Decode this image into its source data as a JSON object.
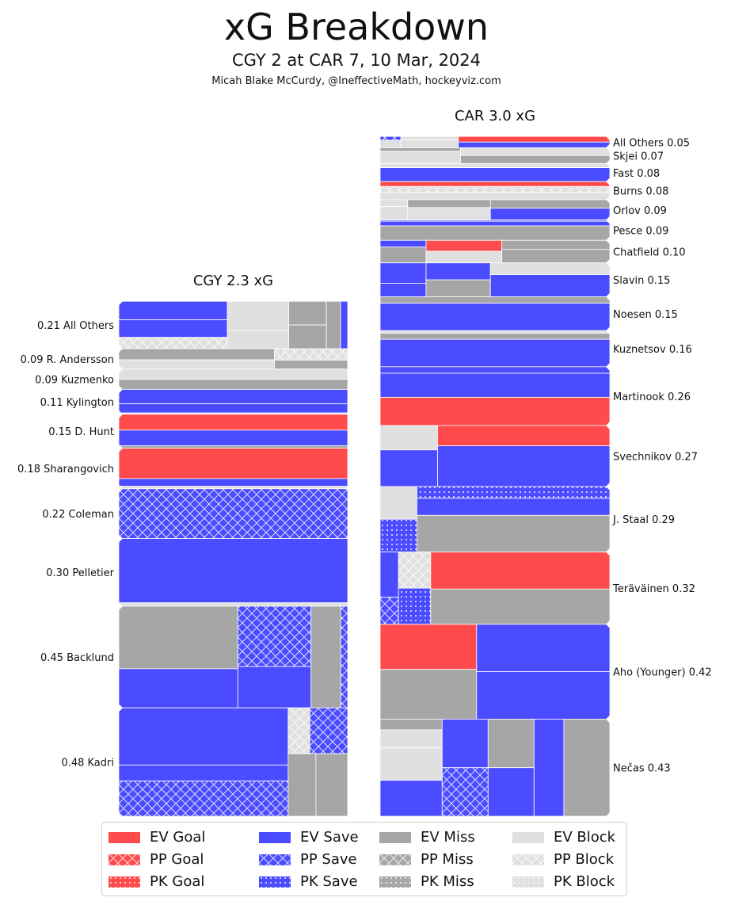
{
  "title": "xG Breakdown",
  "subtitle": "CGY 2 at CAR 7, 10 Mar, 2024",
  "byline": "Micah Blake McCurdy, @IneffectiveMath, hockeyviz.com",
  "colors": {
    "goal": "#ff4b4b",
    "save": "#4b4bff",
    "miss": "#a6a6a6",
    "block": "#e0e0e0",
    "edge": "#ffffff"
  },
  "legend": [
    {
      "label": "EV Goal",
      "kind": "goal",
      "pattern": "ev"
    },
    {
      "label": "PP Goal",
      "kind": "goal",
      "pattern": "pp"
    },
    {
      "label": "PK Goal",
      "kind": "goal",
      "pattern": "pk"
    },
    {
      "label": "EV Save",
      "kind": "save",
      "pattern": "ev"
    },
    {
      "label": "PP Save",
      "kind": "save",
      "pattern": "pp"
    },
    {
      "label": "PK Save",
      "kind": "save",
      "pattern": "pk"
    },
    {
      "label": "EV Miss",
      "kind": "miss",
      "pattern": "ev"
    },
    {
      "label": "PP Miss",
      "kind": "miss",
      "pattern": "pp"
    },
    {
      "label": "PK Miss",
      "kind": "miss",
      "pattern": "pk"
    },
    {
      "label": "EV Block",
      "kind": "block",
      "pattern": "ev"
    },
    {
      "label": "PP Block",
      "kind": "block",
      "pattern": "pp"
    },
    {
      "label": "PK Block",
      "kind": "block",
      "pattern": "pk"
    }
  ],
  "chart_data": {
    "type": "treemap",
    "unit": "xG",
    "panels": [
      {
        "team": "CGY",
        "title": "CGY 2.3 xG",
        "total_xg": 2.3,
        "label_side": "left",
        "players": [
          {
            "name": "All Others",
            "label": "0.21 All Others",
            "xg": 0.21,
            "shots": [
              {
                "kind": "save",
                "pattern": "ev",
                "w": 0.18
              },
              {
                "kind": "save",
                "pattern": "ev",
                "w": 0.17
              },
              {
                "kind": "block",
                "pattern": "pp",
                "w": 0.11
              },
              {
                "kind": "block",
                "pattern": "ev",
                "w": 0.16
              },
              {
                "kind": "block",
                "pattern": "ev",
                "w": 0.1
              },
              {
                "kind": "miss",
                "pattern": "ev",
                "w": 0.08
              },
              {
                "kind": "miss",
                "pattern": "ev",
                "w": 0.08
              },
              {
                "kind": "miss",
                "pattern": "ev",
                "w": 0.06
              },
              {
                "kind": "save",
                "pattern": "ev",
                "w": 0.03
              }
            ]
          },
          {
            "name": "R. Andersson",
            "label": "0.09 R. Andersson",
            "xg": 0.09,
            "shots": [
              {
                "kind": "miss",
                "pattern": "ev",
                "w": 0.37
              },
              {
                "kind": "block",
                "pattern": "ev",
                "w": 0.31
              },
              {
                "kind": "block",
                "pattern": "pp",
                "w": 0.18
              },
              {
                "kind": "miss",
                "pattern": "ev",
                "w": 0.14
              }
            ]
          },
          {
            "name": "Kuzmenko",
            "label": "0.09 Kuzmenko",
            "xg": 0.09,
            "shots": [
              {
                "kind": "block",
                "pattern": "ev",
                "w": 0.5
              },
              {
                "kind": "miss",
                "pattern": "ev",
                "w": 0.5
              }
            ]
          },
          {
            "name": "Kylington",
            "label": "0.11 Kylington",
            "xg": 0.11,
            "shots": [
              {
                "kind": "save",
                "pattern": "ev",
                "w": 0.58
              },
              {
                "kind": "save",
                "pattern": "ev",
                "w": 0.37
              },
              {
                "kind": "block",
                "pattern": "ev",
                "w": 0.05
              }
            ]
          },
          {
            "name": "D. Hunt",
            "label": "0.15 D. Hunt",
            "xg": 0.15,
            "shots": [
              {
                "kind": "goal",
                "pattern": "ev",
                "w": 0.47
              },
              {
                "kind": "save",
                "pattern": "ev",
                "w": 0.46
              },
              {
                "kind": "miss",
                "pattern": "ev",
                "w": 0.07
              }
            ]
          },
          {
            "name": "Sharangovich",
            "label": "0.18 Sharangovich",
            "xg": 0.18,
            "shots": [
              {
                "kind": "goal",
                "pattern": "ev",
                "w": 0.75
              },
              {
                "kind": "save",
                "pattern": "ev",
                "w": 0.19
              },
              {
                "kind": "block",
                "pattern": "ev",
                "w": 0.06
              }
            ]
          },
          {
            "name": "Coleman",
            "label": "0.22 Coleman",
            "xg": 0.22,
            "shots": [
              {
                "kind": "save",
                "pattern": "pp",
                "w": 1.0
              }
            ]
          },
          {
            "name": "Pelletier",
            "label": "0.30 Pelletier",
            "xg": 0.3,
            "shots": [
              {
                "kind": "save",
                "pattern": "ev",
                "w": 0.95
              },
              {
                "kind": "block",
                "pattern": "ev",
                "w": 0.05
              }
            ]
          },
          {
            "name": "Backlund",
            "label": "0.45 Backlund",
            "xg": 0.45,
            "shots": [
              {
                "kind": "miss",
                "pattern": "ev",
                "w": 0.32
              },
              {
                "kind": "save",
                "pattern": "ev",
                "w": 0.2
              },
              {
                "kind": "save",
                "pattern": "pp",
                "w": 0.19
              },
              {
                "kind": "save",
                "pattern": "ev",
                "w": 0.13
              },
              {
                "kind": "miss",
                "pattern": "ev",
                "w": 0.13
              },
              {
                "kind": "save",
                "pattern": "pp",
                "w": 0.03
              }
            ]
          },
          {
            "name": "Kadri",
            "label": "0.48 Kadri",
            "xg": 0.48,
            "shots": [
              {
                "kind": "save",
                "pattern": "ev",
                "w": 0.39
              },
              {
                "kind": "save",
                "pattern": "ev",
                "w": 0.11
              },
              {
                "kind": "save",
                "pattern": "pp",
                "w": 0.24
              },
              {
                "kind": "block",
                "pattern": "pp",
                "w": 0.04
              },
              {
                "kind": "save",
                "pattern": "pp",
                "w": 0.07
              },
              {
                "kind": "miss",
                "pattern": "ev",
                "w": 0.07
              },
              {
                "kind": "miss",
                "pattern": "ev",
                "w": 0.08
              }
            ]
          }
        ]
      },
      {
        "team": "CAR",
        "title": "CAR 3.0 xG",
        "total_xg": 3.0,
        "label_side": "right",
        "players": [
          {
            "name": "All Others",
            "label": "All Others 0.05",
            "xg": 0.05,
            "shots": [
              {
                "kind": "save",
                "pattern": "pp",
                "w": 0.03
              },
              {
                "kind": "block",
                "pattern": "ev",
                "w": 0.06
              },
              {
                "kind": "block",
                "pattern": "ev",
                "w": 0.08
              },
              {
                "kind": "block",
                "pattern": "ev",
                "w": 0.17
              },
              {
                "kind": "goal",
                "pattern": "ev",
                "w": 0.33
              },
              {
                "kind": "save",
                "pattern": "ev",
                "w": 0.33
              }
            ]
          },
          {
            "name": "Skjei",
            "label": "Skjei 0.07",
            "xg": 0.07,
            "shots": [
              {
                "kind": "miss",
                "pattern": "ev",
                "w": 0.08
              },
              {
                "kind": "block",
                "pattern": "ev",
                "w": 0.27
              },
              {
                "kind": "block",
                "pattern": "ev",
                "w": 0.32
              },
              {
                "kind": "miss",
                "pattern": "ev",
                "w": 0.33
              }
            ]
          },
          {
            "name": "Fast",
            "label": "Fast 0.08",
            "xg": 0.08,
            "shots": [
              {
                "kind": "block",
                "pattern": "ev",
                "w": 0.23
              },
              {
                "kind": "save",
                "pattern": "ev",
                "w": 0.77
              }
            ]
          },
          {
            "name": "Burns",
            "label": "Burns 0.08",
            "xg": 0.08,
            "shots": [
              {
                "kind": "goal",
                "pattern": "ev",
                "w": 0.27
              },
              {
                "kind": "block",
                "pattern": "pp",
                "w": 0.34
              },
              {
                "kind": "block",
                "pattern": "ev",
                "w": 0.39
              }
            ]
          },
          {
            "name": "Orlov",
            "label": "Orlov 0.09",
            "xg": 0.09,
            "shots": [
              {
                "kind": "block",
                "pattern": "ev",
                "w": 0.04
              },
              {
                "kind": "block",
                "pattern": "ev",
                "w": 0.08
              },
              {
                "kind": "miss",
                "pattern": "ev",
                "w": 0.14
              },
              {
                "kind": "block",
                "pattern": "ev",
                "w": 0.22
              },
              {
                "kind": "miss",
                "pattern": "ev",
                "w": 0.22
              },
              {
                "kind": "save",
                "pattern": "ev",
                "w": 0.3
              }
            ]
          },
          {
            "name": "Pesce",
            "label": "Pesce 0.09",
            "xg": 0.09,
            "shots": [
              {
                "kind": "save",
                "pattern": "ev",
                "w": 0.06
              },
              {
                "kind": "save",
                "pattern": "ev",
                "w": 0.23
              },
              {
                "kind": "miss",
                "pattern": "ev",
                "w": 0.71
              }
            ]
          },
          {
            "name": "Chatfield",
            "label": "Chatfield 0.10",
            "xg": 0.1,
            "shots": [
              {
                "kind": "save",
                "pattern": "ev",
                "w": 0.06
              },
              {
                "kind": "miss",
                "pattern": "ev",
                "w": 0.14
              },
              {
                "kind": "goal",
                "pattern": "ev",
                "w": 0.16
              },
              {
                "kind": "block",
                "pattern": "ev",
                "w": 0.17
              },
              {
                "kind": "miss",
                "pattern": "ev",
                "w": 0.19
              },
              {
                "kind": "miss",
                "pattern": "ev",
                "w": 0.28
              }
            ]
          },
          {
            "name": "Slavin",
            "label": "Slavin 0.15",
            "xg": 0.15,
            "shots": [
              {
                "kind": "save",
                "pattern": "ev",
                "w": 0.12
              },
              {
                "kind": "save",
                "pattern": "ev",
                "w": 0.08
              },
              {
                "kind": "save",
                "pattern": "ev",
                "w": 0.14
              },
              {
                "kind": "miss",
                "pattern": "ev",
                "w": 0.14
              },
              {
                "kind": "block",
                "pattern": "ev",
                "w": 0.18
              },
              {
                "kind": "save",
                "pattern": "ev",
                "w": 0.34
              }
            ]
          },
          {
            "name": "Noesen",
            "label": "Noesen 0.15",
            "xg": 0.15,
            "shots": [
              {
                "kind": "miss",
                "pattern": "ev",
                "w": 0.19
              },
              {
                "kind": "save",
                "pattern": "ev",
                "w": 0.81
              }
            ]
          },
          {
            "name": "Kuznetsov",
            "label": "Kuznetsov 0.16",
            "xg": 0.16,
            "shots": [
              {
                "kind": "block",
                "pattern": "ev",
                "w": 0.07
              },
              {
                "kind": "miss",
                "pattern": "ev",
                "w": 0.17
              },
              {
                "kind": "save",
                "pattern": "ev",
                "w": 0.76
              }
            ]
          },
          {
            "name": "Martinook",
            "label": "Martinook 0.26",
            "xg": 0.26,
            "shots": [
              {
                "kind": "save",
                "pattern": "ev",
                "w": 0.11
              },
              {
                "kind": "save",
                "pattern": "ev",
                "w": 0.41
              },
              {
                "kind": "goal",
                "pattern": "ev",
                "w": 0.48
              }
            ]
          },
          {
            "name": "Svechnikov",
            "label": "Svechnikov 0.27",
            "xg": 0.27,
            "shots": [
              {
                "kind": "block",
                "pattern": "ev",
                "w": 0.1
              },
              {
                "kind": "save",
                "pattern": "ev",
                "w": 0.15
              },
              {
                "kind": "goal",
                "pattern": "ev",
                "w": 0.25
              },
              {
                "kind": "save",
                "pattern": "ev",
                "w": 0.5
              }
            ]
          },
          {
            "name": "J. Staal",
            "label": "J. Staal 0.29",
            "xg": 0.29,
            "shots": [
              {
                "kind": "block",
                "pattern": "ev",
                "w": 0.08
              },
              {
                "kind": "save",
                "pattern": "pk",
                "w": 0.08
              },
              {
                "kind": "save",
                "pattern": "pk",
                "w": 0.15
              },
              {
                "kind": "save",
                "pattern": "ev",
                "w": 0.22
              },
              {
                "kind": "miss",
                "pattern": "ev",
                "w": 0.47
              }
            ]
          },
          {
            "name": "Teräväinen",
            "label": "Teräväinen 0.32",
            "xg": 0.32,
            "shots": [
              {
                "kind": "save",
                "pattern": "ev",
                "w": 0.05
              },
              {
                "kind": "save",
                "pattern": "pp",
                "w": 0.03
              },
              {
                "kind": "block",
                "pattern": "pp",
                "w": 0.07
              },
              {
                "kind": "save",
                "pattern": "pk",
                "w": 0.07
              },
              {
                "kind": "goal",
                "pattern": "ev",
                "w": 0.4
              },
              {
                "kind": "miss",
                "pattern": "ev",
                "w": 0.38
              }
            ]
          },
          {
            "name": "Aho (Younger)",
            "label": "Aho (Younger) 0.42",
            "xg": 0.42,
            "shots": [
              {
                "kind": "goal",
                "pattern": "ev",
                "w": 0.2
              },
              {
                "kind": "miss",
                "pattern": "ev",
                "w": 0.22
              },
              {
                "kind": "save",
                "pattern": "ev",
                "w": 0.29
              },
              {
                "kind": "save",
                "pattern": "ev",
                "w": 0.29
              }
            ]
          },
          {
            "name": "Nečas",
            "label": "Nečas 0.43",
            "xg": 0.43,
            "shots": [
              {
                "kind": "miss",
                "pattern": "ev",
                "w": 0.03
              },
              {
                "kind": "block",
                "pattern": "ev",
                "w": 0.05
              },
              {
                "kind": "block",
                "pattern": "ev",
                "w": 0.09
              },
              {
                "kind": "save",
                "pattern": "ev",
                "w": 0.1
              },
              {
                "kind": "save",
                "pattern": "ev",
                "w": 0.1
              },
              {
                "kind": "save",
                "pattern": "pp",
                "w": 0.1
              },
              {
                "kind": "miss",
                "pattern": "ev",
                "w": 0.1
              },
              {
                "kind": "save",
                "pattern": "ev",
                "w": 0.1
              },
              {
                "kind": "save",
                "pattern": "ev",
                "w": 0.13
              },
              {
                "kind": "miss",
                "pattern": "ev",
                "w": 0.2
              }
            ]
          }
        ]
      }
    ]
  }
}
